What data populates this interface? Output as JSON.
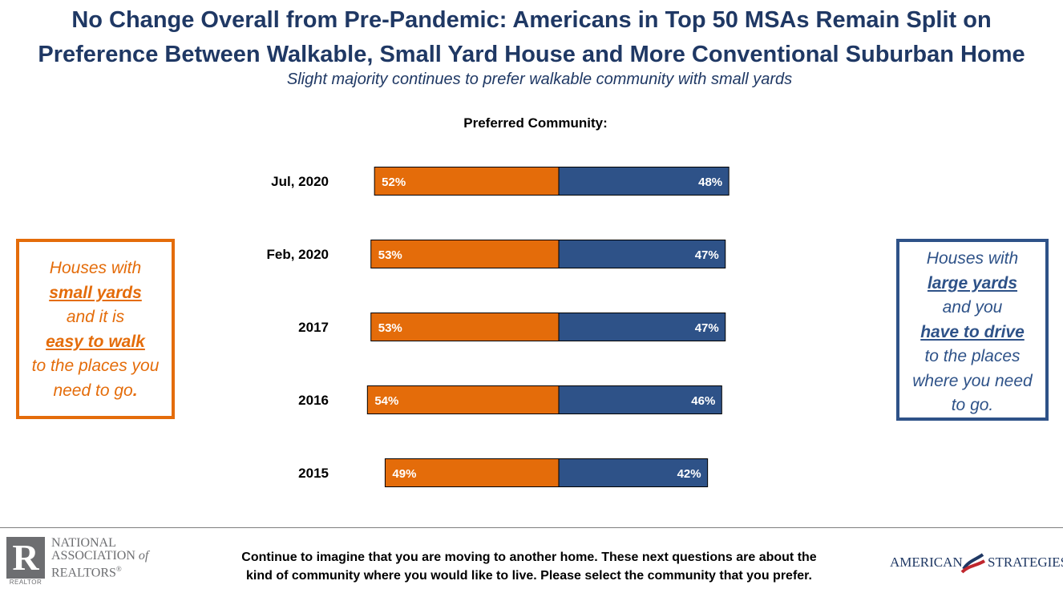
{
  "header": {
    "title_line1": "No Change Overall from Pre-Pandemic: Americans in Top 50 MSAs Remain Split on",
    "title_line2": "Preference Between Walkable, Small Yard House and More Conventional Suburban Home",
    "subtitle": "Slight majority continues to prefer walkable community with small yards"
  },
  "chart_data": {
    "type": "bar",
    "orientation": "horizontal-stacked",
    "title": "Preferred Community:",
    "categories": [
      "Jul, 2020",
      "Feb, 2020",
      "2017",
      "2016",
      "2015"
    ],
    "series": [
      {
        "values": [
          52,
          53,
          53,
          54,
          49
        ],
        "labels": [
          "52%",
          "53%",
          "53%",
          "54%",
          "49%"
        ],
        "color": "#e46c0a"
      },
      {
        "values": [
          48,
          47,
          47,
          46,
          42
        ],
        "labels": [
          "48%",
          "47%",
          "47%",
          "46%",
          "42%"
        ],
        "color": "#2e5288"
      }
    ],
    "grid": false,
    "legend": "none"
  },
  "left_box": {
    "l1": "Houses with",
    "l2": "small yards",
    "l3": "and it is",
    "l4": "easy to walk",
    "l5": "to the places you",
    "l6": "need to go",
    "l6_end": ".",
    "color": "#e46c0a"
  },
  "right_box": {
    "l1": "Houses with",
    "l2": "large yards",
    "l3": "and you",
    "l4": "have to drive",
    "l5": "to the places",
    "l6": "where you need",
    "l7": "to go.",
    "color": "#2e5288"
  },
  "footer": {
    "question_line1": "Continue to imagine that you are moving to another home. These next questions are about the",
    "question_line2": "kind of community where you would like to live. Please select the community that you prefer.",
    "nar_line1": "NATIONAL",
    "nar_line2": "ASSOCIATION",
    "nar_of": "of",
    "nar_line3": "REALTORS",
    "nar_reg": "®",
    "nar_mark": "R",
    "nar_sub": "REALTOR",
    "as_left": "AMERICAN",
    "as_right": "STRATEGIES"
  }
}
